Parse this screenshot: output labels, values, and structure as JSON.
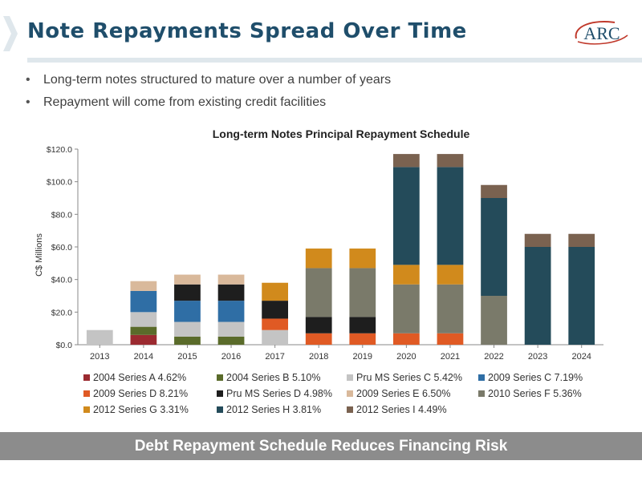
{
  "header": {
    "title": "Note Repayments Spread Over Time",
    "logo_text": "ARC"
  },
  "bullets": [
    "Long-term notes structured to mature over a number of years",
    "Repayment will come from existing credit facilities"
  ],
  "footer": {
    "text": "Debt Repayment Schedule Reduces Financing Risk"
  },
  "chart_data": {
    "type": "bar",
    "stacked": true,
    "title": "Long-term Notes Principal Repayment Schedule",
    "xlabel": "",
    "ylabel": "C$ Millions",
    "ylim": [
      0,
      120
    ],
    "yticks": [
      0,
      20,
      40,
      60,
      80,
      100,
      120
    ],
    "ytick_labels": [
      "$0.0",
      "$20.0",
      "$40.0",
      "$60.0",
      "$80.0",
      "$100.0",
      "$120.0"
    ],
    "grid": false,
    "legend_position": "bottom",
    "categories": [
      "2013",
      "2014",
      "2015",
      "2016",
      "2017",
      "2018",
      "2019",
      "2020",
      "2021",
      "2022",
      "2023",
      "2024"
    ],
    "series": [
      {
        "name": "2004 Series A 4.62%",
        "color": "#9b2a30",
        "values": [
          0,
          6,
          0,
          0,
          0,
          0,
          0,
          0,
          0,
          0,
          0,
          0
        ]
      },
      {
        "name": "2004 Series B 5.10%",
        "color": "#5a6b2a",
        "values": [
          0,
          5,
          5,
          5,
          0,
          0,
          0,
          0,
          0,
          0,
          0,
          0
        ]
      },
      {
        "name": "Pru MS Series C 5.42%",
        "color": "#c4c4c4",
        "values": [
          9,
          9,
          9,
          9,
          9,
          0,
          0,
          0,
          0,
          0,
          0,
          0
        ]
      },
      {
        "name": "2009 Series C 7.19%",
        "color": "#2f6ea5",
        "values": [
          0,
          13,
          13,
          13,
          0,
          0,
          0,
          0,
          0,
          0,
          0,
          0
        ]
      },
      {
        "name": "2009 Series D 8.21%",
        "color": "#e05a24",
        "values": [
          0,
          0,
          0,
          0,
          7,
          7,
          7,
          7,
          7,
          0,
          0,
          0
        ]
      },
      {
        "name": "Pru MS Series D 4.98%",
        "color": "#1e1e1e",
        "values": [
          0,
          0,
          10,
          10,
          11,
          10,
          10,
          0,
          0,
          0,
          0,
          0
        ]
      },
      {
        "name": "2009 Series E 6.50%",
        "color": "#d9b99b",
        "values": [
          0,
          6,
          6,
          6,
          0,
          0,
          0,
          0,
          0,
          0,
          0,
          0
        ]
      },
      {
        "name": "2010 Series F 5.36%",
        "color": "#7a7a6a",
        "values": [
          0,
          0,
          0,
          0,
          0,
          30,
          30,
          30,
          30,
          30,
          0,
          0
        ]
      },
      {
        "name": "2012 Series G 3.31%",
        "color": "#d18a1c",
        "values": [
          0,
          0,
          0,
          0,
          11,
          12,
          12,
          12,
          12,
          0,
          0,
          0
        ]
      },
      {
        "name": "2012 Series H 3.81%",
        "color": "#244b5a",
        "values": [
          0,
          0,
          0,
          0,
          0,
          0,
          0,
          60,
          60,
          60,
          60,
          60
        ]
      },
      {
        "name": "2012 Series I 4.49%",
        "color": "#7a6250",
        "values": [
          0,
          0,
          0,
          0,
          0,
          0,
          0,
          8,
          8,
          8,
          8,
          8
        ]
      }
    ]
  }
}
